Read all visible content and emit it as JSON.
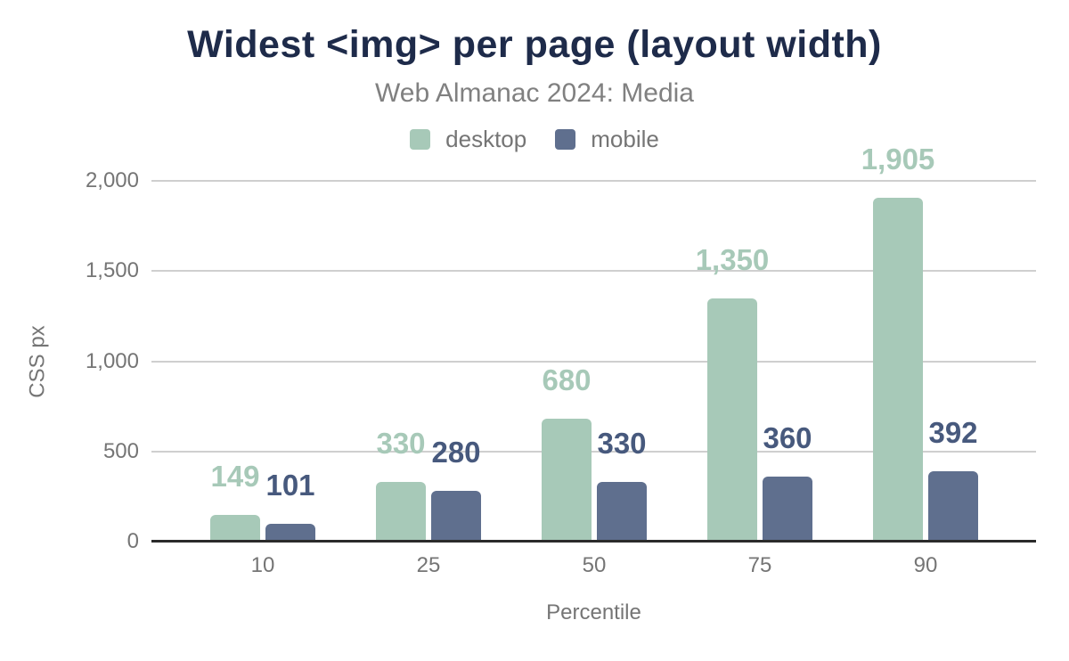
{
  "header": {
    "title": "Widest <img> per page (layout width)",
    "subtitle": "Web Almanac 2024: Media"
  },
  "legend": {
    "items": [
      {
        "label": "desktop",
        "color": "#a7c9b8"
      },
      {
        "label": "mobile",
        "color": "#5f6f8e"
      }
    ]
  },
  "chart_data": {
    "type": "bar",
    "title": "Widest <img> per page (layout width)",
    "subtitle": "Web Almanac 2024: Media",
    "categories": [
      "10",
      "25",
      "50",
      "75",
      "90"
    ],
    "series": [
      {
        "name": "desktop",
        "color": "#a7c9b8",
        "label_color": "#a7c9b8",
        "values": [
          149,
          330,
          680,
          1350,
          1905
        ],
        "value_labels": [
          "149",
          "330",
          "680",
          "1,350",
          "1,905"
        ]
      },
      {
        "name": "mobile",
        "color": "#5f6f8e",
        "label_color": "#47597d",
        "values": [
          101,
          280,
          330,
          360,
          392
        ],
        "value_labels": [
          "101",
          "280",
          "330",
          "360",
          "392"
        ]
      }
    ],
    "xlabel": "Percentile",
    "ylabel": "CSS px",
    "ylim": [
      0,
      2000
    ],
    "yticks": [
      {
        "value": 0,
        "label": "0"
      },
      {
        "value": 500,
        "label": "500"
      },
      {
        "value": 1000,
        "label": "1,000"
      },
      {
        "value": 1500,
        "label": "1,500"
      },
      {
        "value": 2000,
        "label": "2,000"
      }
    ],
    "grid": true,
    "legend_position": "top"
  },
  "colors": {
    "title": "#1e2b4a",
    "subtitle": "#808080",
    "axis_text": "#757575",
    "gridline": "#cfcfcf",
    "axis_line": "#2b2b2b",
    "background": "#ffffff"
  }
}
